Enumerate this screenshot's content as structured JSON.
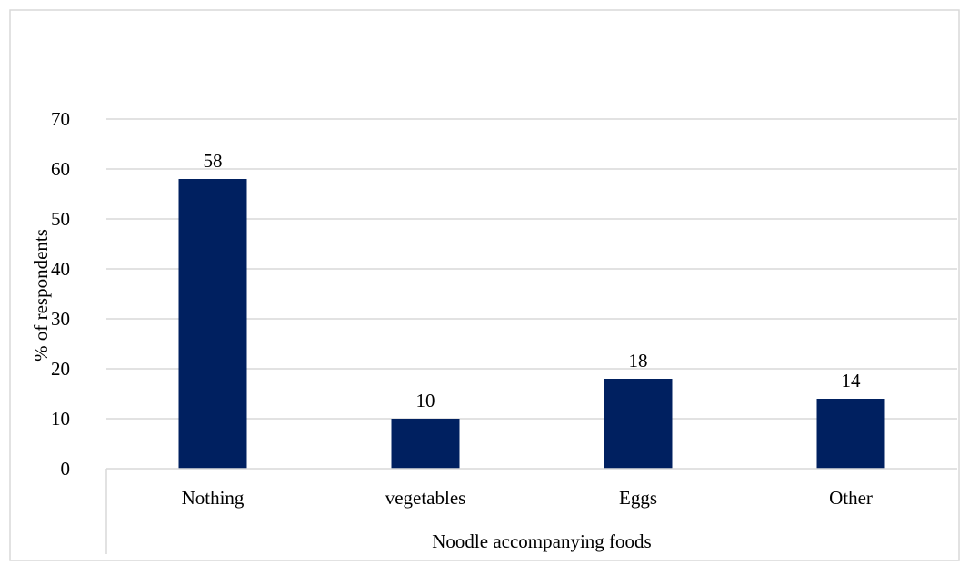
{
  "chart_data": {
    "type": "bar",
    "title": "",
    "categories": [
      "Nothing",
      "vegetables",
      "Eggs",
      "Other"
    ],
    "values": [
      58,
      10,
      18,
      14
    ],
    "data_labels": [
      "58",
      "10",
      "18",
      "14"
    ],
    "xlabel": "Noodle accompanying foods",
    "ylabel": "% of respondents",
    "ylim": [
      0,
      70
    ],
    "yticks": [
      0,
      10,
      20,
      30,
      40,
      50,
      60,
      70
    ],
    "grid": true,
    "legend": "none",
    "bar_color": "#002060",
    "gridline_color": "#d9d9d9",
    "border_color": "#d9d9d9"
  }
}
